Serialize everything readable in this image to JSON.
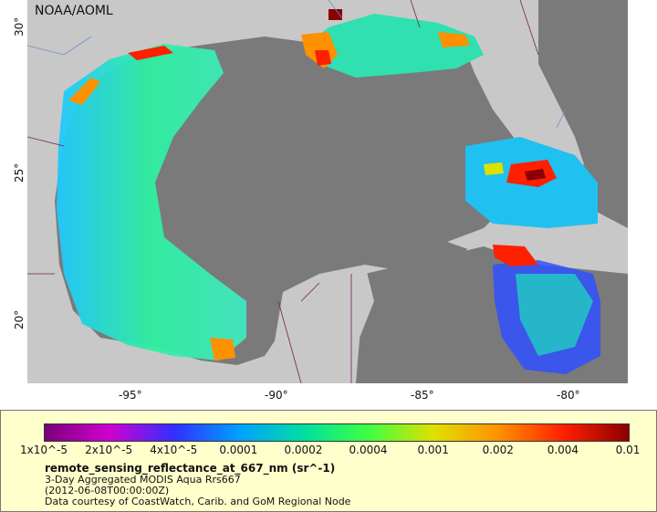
{
  "credit": "NOAA/AOML",
  "lat_ticks": [
    "30°",
    "25°",
    "20°"
  ],
  "lon_ticks": [
    "-95°",
    "-90°",
    "-85°",
    "-80°"
  ],
  "colorbar": {
    "labels": [
      "1x10^-5",
      "2x10^-5",
      "4x10^-5",
      "0.0001",
      "0.0002",
      "0.0004",
      "0.001",
      "0.002",
      "0.004",
      "0.01"
    ],
    "colors": [
      "#7a007a",
      "#d000d0",
      "#3030ff",
      "#00a0ff",
      "#00e0a0",
      "#40ff40",
      "#e0e000",
      "#ff9000",
      "#ff2000",
      "#8b0000"
    ]
  },
  "legend": {
    "title": "remote_sensing_reflectance_at_667_nm (sr^-1)",
    "line1": "3-Day Aggregated MODIS Aqua Rrs667",
    "line2": "(2012-06-08T00:00:00Z)",
    "line3": "Data courtesy of CoastWatch, Carib. and GoM Regional Node"
  },
  "colors": {
    "land": "#c8c8c8",
    "water_nodata": "#7a7a7a",
    "legend_bg": "#ffffcc"
  }
}
